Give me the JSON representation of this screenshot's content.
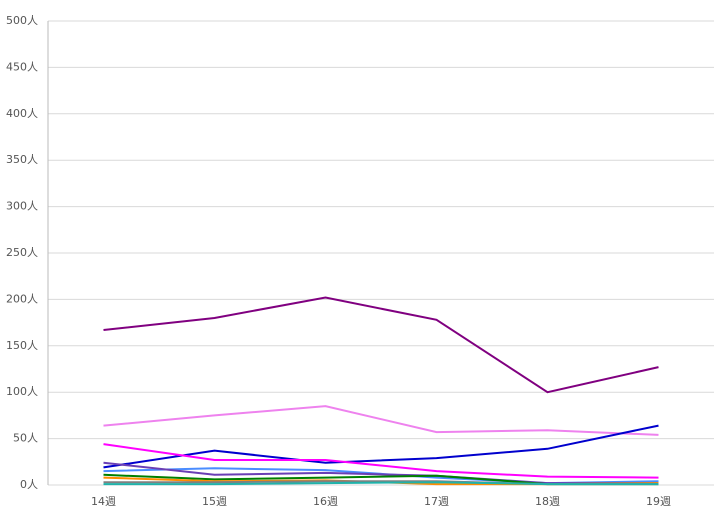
{
  "chart_data": {
    "type": "line",
    "categories": [
      "14週",
      "15週",
      "16週",
      "17週",
      "18週",
      "19週"
    ],
    "series": [
      {
        "color": "#800080",
        "values": [
          167,
          180,
          202,
          178,
          100,
          127
        ]
      },
      {
        "color": "#ee82ee",
        "values": [
          64,
          75,
          85,
          57,
          59,
          54
        ]
      },
      {
        "color": "#0000cd",
        "values": [
          19,
          37,
          24,
          29,
          39,
          64
        ]
      },
      {
        "color": "#ff00ff",
        "values": [
          44,
          27,
          27,
          15,
          9,
          8
        ]
      },
      {
        "color": "#4a8cff",
        "values": [
          15,
          18,
          16,
          8,
          2,
          4
        ]
      },
      {
        "color": "#6a3fb5",
        "values": [
          24,
          11,
          13,
          10,
          2,
          2
        ]
      },
      {
        "color": "#008000",
        "values": [
          11,
          6,
          8,
          10,
          1,
          1
        ]
      },
      {
        "color": "#ff8c00",
        "values": [
          8,
          4,
          5,
          1,
          1,
          2
        ]
      },
      {
        "color": "#808080",
        "values": [
          3,
          3,
          4,
          4,
          1,
          1
        ]
      },
      {
        "color": "#20b2aa",
        "values": [
          1,
          1,
          2,
          3,
          1,
          1
        ]
      }
    ],
    "ylim": [
      0,
      500
    ],
    "yticks": [
      {
        "value": 0,
        "label": "0人"
      },
      {
        "value": 50,
        "label": "50人"
      },
      {
        "value": 100,
        "label": "100人"
      },
      {
        "value": 150,
        "label": "150人"
      },
      {
        "value": 200,
        "label": "200人"
      },
      {
        "value": 250,
        "label": "250人"
      },
      {
        "value": 300,
        "label": "300人"
      },
      {
        "value": 350,
        "label": "350人"
      },
      {
        "value": 400,
        "label": "400人"
      },
      {
        "value": 450,
        "label": "450人"
      },
      {
        "value": 500,
        "label": "500人"
      }
    ],
    "grid": true
  }
}
